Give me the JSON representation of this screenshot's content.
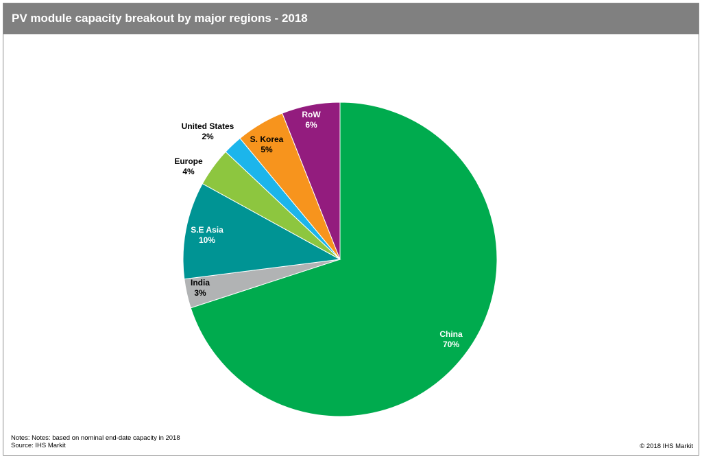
{
  "header": {
    "title": "PV module capacity breakout by major regions - 2018"
  },
  "footer": {
    "notes": "Notes: Notes: based on nominal end-date capacity in 2018",
    "source": "Source: IHS Markit",
    "copyright": "© 2018 IHS Markit"
  },
  "chart_data": {
    "type": "pie",
    "start_angle_deg": 0,
    "direction": "clockwise",
    "slices": [
      {
        "label": "China",
        "value": 70,
        "value_label": "70%",
        "color": "#00AB4E",
        "label_color": "#ffffff"
      },
      {
        "label": "India",
        "value": 3,
        "value_label": "3%",
        "color": "#B1B3B4",
        "label_color": "#000000"
      },
      {
        "label": "S.E Asia",
        "value": 10,
        "value_label": "10%",
        "color": "#009494",
        "label_color": "#ffffff"
      },
      {
        "label": "Europe",
        "value": 4,
        "value_label": "4%",
        "color": "#8DC63F",
        "label_color": "#000000"
      },
      {
        "label": "United States",
        "value": 2,
        "value_label": "2%",
        "color": "#1CB5EB",
        "label_color": "#000000"
      },
      {
        "label": "S. Korea",
        "value": 5,
        "value_label": "5%",
        "color": "#F7941D",
        "label_color": "#000000"
      },
      {
        "label": "RoW",
        "value": 6,
        "value_label": "6%",
        "color": "#931C7E",
        "label_color": "#ffffff"
      }
    ]
  }
}
